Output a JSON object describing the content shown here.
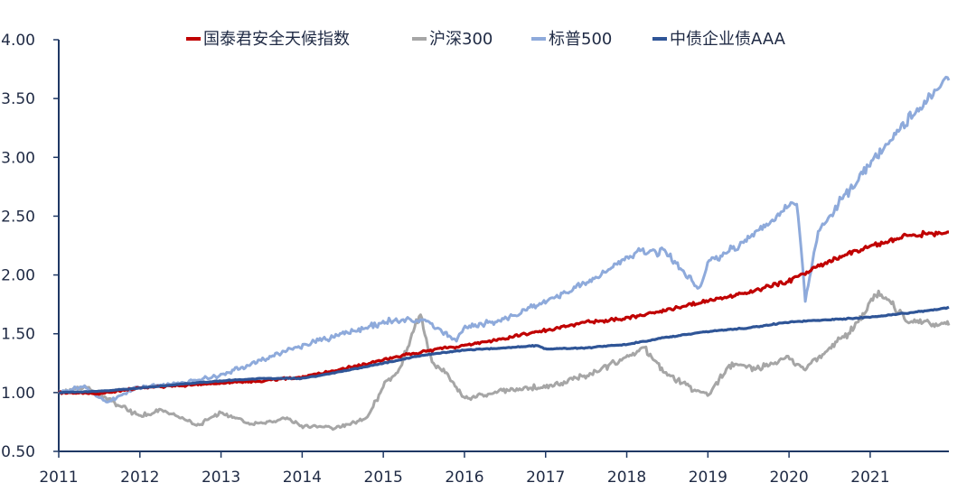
{
  "chart_data": {
    "type": "line",
    "title": "",
    "xlabel": "",
    "ylabel": "",
    "xlim": [
      2011.0,
      2021.97
    ],
    "ylim": [
      0.5,
      4.0
    ],
    "y_ticks": [
      "0.50",
      "1.00",
      "1.50",
      "2.00",
      "2.50",
      "3.00",
      "3.50",
      "4.00"
    ],
    "x_ticks": [
      "2011",
      "2012",
      "2013",
      "2014",
      "2015",
      "2016",
      "2017",
      "2018",
      "2019",
      "2020",
      "2021"
    ],
    "grid": false,
    "legend_position": "top",
    "series": [
      {
        "name": "国泰君安全天候指数",
        "color": "#c00000",
        "x": [
          2011.0,
          2011.5,
          2012.0,
          2012.5,
          2013.0,
          2013.5,
          2014.0,
          2014.5,
          2015.0,
          2015.5,
          2016.0,
          2016.5,
          2017.0,
          2017.5,
          2018.0,
          2018.5,
          2019.0,
          2019.5,
          2020.0,
          2020.5,
          2021.0,
          2021.5,
          2021.97
        ],
        "y": [
          1.0,
          0.99,
          1.04,
          1.06,
          1.08,
          1.1,
          1.13,
          1.2,
          1.28,
          1.35,
          1.4,
          1.46,
          1.53,
          1.6,
          1.63,
          1.7,
          1.78,
          1.85,
          1.95,
          2.12,
          2.25,
          2.34,
          2.36
        ]
      },
      {
        "name": "沪深300",
        "color": "#a6a6a6",
        "x": [
          2011.0,
          2011.3,
          2011.6,
          2012.0,
          2012.3,
          2012.7,
          2013.0,
          2013.4,
          2013.8,
          2014.0,
          2014.4,
          2014.8,
          2015.0,
          2015.2,
          2015.45,
          2015.6,
          2015.8,
          2016.0,
          2016.5,
          2017.0,
          2017.5,
          2018.0,
          2018.2,
          2018.5,
          2018.9,
          2019.0,
          2019.3,
          2019.6,
          2020.0,
          2020.2,
          2020.5,
          2020.8,
          2021.0,
          2021.1,
          2021.5,
          2021.97
        ],
        "y": [
          1.0,
          1.05,
          0.95,
          0.8,
          0.85,
          0.72,
          0.83,
          0.73,
          0.78,
          0.72,
          0.7,
          0.78,
          1.05,
          1.2,
          1.68,
          1.25,
          1.15,
          0.95,
          1.02,
          1.05,
          1.15,
          1.3,
          1.38,
          1.15,
          1.0,
          0.98,
          1.25,
          1.2,
          1.3,
          1.2,
          1.38,
          1.55,
          1.75,
          1.85,
          1.6,
          1.58
        ]
      },
      {
        "name": "标普500",
        "color": "#8eaadb",
        "x": [
          2011.0,
          2011.3,
          2011.6,
          2012.0,
          2012.5,
          2013.0,
          2013.5,
          2014.0,
          2014.5,
          2015.0,
          2015.5,
          2015.9,
          2016.0,
          2016.5,
          2017.0,
          2017.5,
          2018.0,
          2018.2,
          2018.5,
          2018.9,
          2019.0,
          2019.5,
          2020.0,
          2020.1,
          2020.2,
          2020.35,
          2020.6,
          2021.0,
          2021.5,
          2021.97
        ],
        "y": [
          1.0,
          1.05,
          0.92,
          1.05,
          1.08,
          1.15,
          1.28,
          1.4,
          1.5,
          1.6,
          1.62,
          1.45,
          1.55,
          1.62,
          1.78,
          1.92,
          2.15,
          2.22,
          2.18,
          1.88,
          2.1,
          2.3,
          2.58,
          2.6,
          1.8,
          2.35,
          2.6,
          2.95,
          3.35,
          3.68
        ]
      },
      {
        "name": "中债企业债AAA",
        "color": "#2f5597",
        "x": [
          2011.0,
          2011.5,
          2012.0,
          2012.5,
          2013.0,
          2013.5,
          2014.0,
          2014.5,
          2015.0,
          2015.5,
          2016.0,
          2016.5,
          2016.9,
          2017.0,
          2017.5,
          2018.0,
          2018.5,
          2019.0,
          2019.5,
          2020.0,
          2020.5,
          2021.0,
          2021.5,
          2021.97
        ],
        "y": [
          1.0,
          1.01,
          1.04,
          1.07,
          1.1,
          1.12,
          1.12,
          1.18,
          1.25,
          1.32,
          1.36,
          1.38,
          1.4,
          1.37,
          1.38,
          1.41,
          1.47,
          1.52,
          1.55,
          1.6,
          1.62,
          1.64,
          1.68,
          1.72
        ]
      }
    ]
  }
}
